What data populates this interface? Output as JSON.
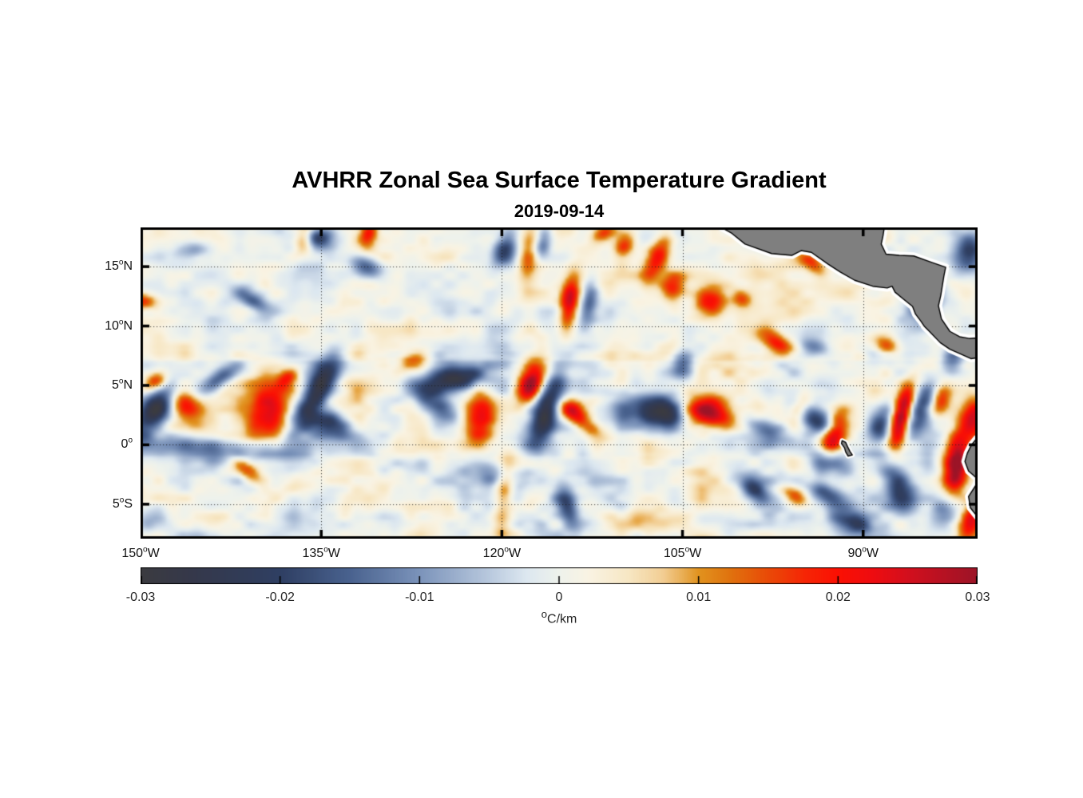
{
  "figure": {
    "title": "AVHRR Zonal Sea Surface Temperature Gradient",
    "subtitle": "2019-09-14"
  },
  "chart_data": {
    "type": "heatmap",
    "title": "AVHRR Zonal Sea Surface Temperature Gradient",
    "date": "2019-09-14",
    "units": "°C/km",
    "lon_range": [
      -150,
      -80.5
    ],
    "lat_range": [
      -7.9,
      18.3
    ],
    "x_ticks": [
      {
        "value": -150,
        "label": "150°W"
      },
      {
        "value": -135,
        "label": "135°W"
      },
      {
        "value": -120,
        "label": "120°W"
      },
      {
        "value": -105,
        "label": "105°W"
      },
      {
        "value": -90,
        "label": "90°W"
      }
    ],
    "y_ticks": [
      {
        "value": 15,
        "label": "15°N"
      },
      {
        "value": 10,
        "label": "10°N"
      },
      {
        "value": 5,
        "label": "5°N"
      },
      {
        "value": 0,
        "label": "0°"
      },
      {
        "value": -5,
        "label": "5°S"
      }
    ],
    "grid": {
      "style": "dotted",
      "color": "#1a1a1a",
      "x_lines": [
        -135,
        -120,
        -105,
        -90
      ],
      "y_lines": [
        15,
        10,
        5,
        0,
        -5
      ]
    },
    "colorbar": {
      "min": -0.03,
      "max": 0.03,
      "unit_label": "°C/km",
      "ticks": [
        {
          "value": -0.03,
          "label": "-0.03"
        },
        {
          "value": -0.02,
          "label": "-0.02"
        },
        {
          "value": -0.01,
          "label": "-0.01"
        },
        {
          "value": 0,
          "label": "0"
        },
        {
          "value": 0.01,
          "label": "0.01"
        },
        {
          "value": 0.02,
          "label": "0.02"
        },
        {
          "value": 0.03,
          "label": "0.03"
        }
      ],
      "stops": [
        [
          0.0,
          "#3b3b40"
        ],
        [
          0.06,
          "#35384a"
        ],
        [
          0.125,
          "#313c58"
        ],
        [
          0.167,
          "#2f3f63"
        ],
        [
          0.25,
          "#49628f"
        ],
        [
          0.333,
          "#7b93ba"
        ],
        [
          0.417,
          "#b9c9de"
        ],
        [
          0.46,
          "#dce7f0"
        ],
        [
          0.5,
          "#eef2ec"
        ],
        [
          0.535,
          "#f9f3e3"
        ],
        [
          0.583,
          "#f7e7c4"
        ],
        [
          0.625,
          "#f2cd92"
        ],
        [
          0.667,
          "#e1931f"
        ],
        [
          0.705,
          "#e0720e"
        ],
        [
          0.75,
          "#e94a07"
        ],
        [
          0.795,
          "#f62505"
        ],
        [
          0.833,
          "#fb1003"
        ],
        [
          0.875,
          "#ee0c10"
        ],
        [
          0.917,
          "#d30f1d"
        ],
        [
          1.0,
          "#9c1427"
        ]
      ]
    },
    "land": {
      "fill": "#7f7f7f",
      "outline": "#000000",
      "halo": "#ffffff",
      "polygons": {
        "central_america": [
          [
            -102.3,
            18.6
          ],
          [
            -100.9,
            17.8
          ],
          [
            -99.8,
            16.9
          ],
          [
            -97.6,
            16.1
          ],
          [
            -95.9,
            15.95
          ],
          [
            -95.15,
            16.35
          ],
          [
            -94.3,
            16.2
          ],
          [
            -92.9,
            15.2
          ],
          [
            -91.9,
            14.55
          ],
          [
            -90.7,
            13.85
          ],
          [
            -89.2,
            13.35
          ],
          [
            -88.0,
            13.2
          ],
          [
            -87.6,
            13.35
          ],
          [
            -87.35,
            12.85
          ],
          [
            -86.7,
            12.3
          ],
          [
            -85.9,
            11.65
          ],
          [
            -85.65,
            11.0
          ],
          [
            -85.2,
            10.4
          ],
          [
            -84.9,
            9.95
          ],
          [
            -84.55,
            9.6
          ],
          [
            -83.6,
            8.6
          ],
          [
            -82.8,
            8.05
          ],
          [
            -81.9,
            7.65
          ],
          [
            -81.05,
            7.25
          ],
          [
            -80.4,
            7.35
          ],
          [
            -79.9,
            7.6
          ],
          [
            -79.9,
            9.2
          ],
          [
            -80.4,
            9.0
          ],
          [
            -81.2,
            8.95
          ],
          [
            -82.0,
            9.1
          ],
          [
            -82.8,
            9.55
          ],
          [
            -83.5,
            10.6
          ],
          [
            -83.75,
            11.7
          ],
          [
            -83.55,
            12.6
          ],
          [
            -83.3,
            14.2
          ],
          [
            -83.15,
            14.95
          ],
          [
            -84.3,
            15.35
          ],
          [
            -85.8,
            15.9
          ],
          [
            -87.0,
            15.95
          ],
          [
            -88.1,
            16.05
          ],
          [
            -88.5,
            16.9
          ],
          [
            -88.35,
            17.6
          ],
          [
            -88.2,
            18.6
          ]
        ],
        "south_america": [
          [
            -79.3,
            1.3
          ],
          [
            -80.6,
            0.5
          ],
          [
            -81.0,
            0.0
          ],
          [
            -81.35,
            -0.7
          ],
          [
            -81.55,
            -1.4
          ],
          [
            -81.25,
            -2.2
          ],
          [
            -80.75,
            -2.65
          ],
          [
            -80.45,
            -2.9
          ],
          [
            -80.7,
            -3.5
          ],
          [
            -81.25,
            -4.35
          ],
          [
            -81.1,
            -5.3
          ],
          [
            -80.55,
            -6.0
          ],
          [
            -79.9,
            -6.9
          ],
          [
            -79.45,
            -7.9
          ],
          [
            -79.2,
            -8.6
          ],
          [
            -79.0,
            -8.6
          ],
          [
            -79.0,
            1.3
          ]
        ],
        "galapagos": [
          [
            -91.75,
            0.35
          ],
          [
            -91.45,
            0.2
          ],
          [
            -91.3,
            -0.15
          ],
          [
            -91.1,
            -0.55
          ],
          [
            -90.9,
            -0.85
          ],
          [
            -91.25,
            -0.95
          ],
          [
            -91.45,
            -0.6
          ],
          [
            -91.55,
            -0.25
          ],
          [
            -91.8,
            0.1
          ]
        ]
      }
    },
    "field": {
      "background_noise": {
        "seed": 11,
        "amplitude": 0.011,
        "octaves": [
          [
            5.5,
            3.5,
            0.45
          ],
          [
            2.4,
            1.6,
            0.6
          ],
          [
            1.1,
            0.75,
            0.35
          ]
        ],
        "north_damping": 0.8
      },
      "features_lon_lat_amp_sx_sy_rotdeg": [
        [
          -148.8,
          2.8,
          -0.026,
          1.7,
          0.8,
          55
        ],
        [
          -143.6,
          5.4,
          -0.018,
          1.4,
          0.55,
          35
        ],
        [
          -142.7,
          -0.6,
          -0.014,
          4.0,
          0.7,
          -5
        ],
        [
          -135.2,
          4.7,
          -0.028,
          2.4,
          0.75,
          62
        ],
        [
          -134.3,
          1.8,
          -0.02,
          0.8,
          1.5,
          75
        ],
        [
          -135.2,
          17.4,
          -0.022,
          0.55,
          1.0,
          85
        ],
        [
          -131.3,
          15.0,
          -0.018,
          0.6,
          1.0,
          70
        ],
        [
          -140.7,
          12.2,
          -0.014,
          1.1,
          0.5,
          -35
        ],
        [
          -124.2,
          5.4,
          -0.026,
          2.2,
          0.7,
          12
        ],
        [
          -125.2,
          3.3,
          -0.019,
          0.7,
          1.3,
          60
        ],
        [
          -116.2,
          3.0,
          -0.028,
          2.4,
          0.75,
          72
        ],
        [
          -107.3,
          2.9,
          -0.022,
          2.0,
          1.1,
          10
        ],
        [
          -106.2,
          2.3,
          -0.014,
          0.9,
          0.9,
          0
        ],
        [
          -104.9,
          7.0,
          -0.016,
          1.0,
          0.65,
          80
        ],
        [
          -119.7,
          16.5,
          -0.02,
          1.3,
          0.7,
          75
        ],
        [
          -116.6,
          17.0,
          -0.016,
          0.9,
          0.5,
          75
        ],
        [
          -112.8,
          12.0,
          -0.016,
          1.5,
          0.5,
          80
        ],
        [
          -94.1,
          2.3,
          -0.02,
          1.6,
          0.8,
          -25
        ],
        [
          -92.6,
          -1.4,
          -0.016,
          1.4,
          0.8,
          -20
        ],
        [
          -98.2,
          1.4,
          -0.017,
          1.6,
          0.6,
          -25
        ],
        [
          -99.1,
          -3.8,
          -0.018,
          1.5,
          0.6,
          -42
        ],
        [
          -93.1,
          -4.1,
          -0.016,
          1.3,
          0.6,
          -30
        ],
        [
          -90.8,
          -6.6,
          -0.018,
          0.6,
          1.3,
          75
        ],
        [
          -87.1,
          -3.6,
          -0.02,
          1.8,
          0.8,
          -70
        ],
        [
          -114.6,
          -5.2,
          -0.016,
          1.6,
          0.6,
          -75
        ],
        [
          -85.2,
          3.0,
          -0.02,
          1.7,
          0.7,
          65
        ],
        [
          -88.4,
          1.7,
          -0.016,
          1.4,
          0.6,
          65
        ],
        [
          -84.8,
          12.3,
          -0.02,
          1.5,
          0.9,
          80
        ],
        [
          -81.1,
          16.1,
          -0.02,
          1.3,
          0.9,
          70
        ],
        [
          -82.6,
          7.2,
          -0.016,
          1.0,
          0.7,
          60
        ],
        [
          -94.0,
          8.2,
          -0.014,
          0.9,
          0.55,
          -20
        ],
        [
          -82.9,
          -5.6,
          -0.02,
          1.5,
          0.9,
          70
        ],
        [
          -120.6,
          -2.3,
          -0.012,
          1.6,
          0.8,
          -20
        ],
        [
          -146.0,
          16.3,
          -0.012,
          1.2,
          0.7,
          10
        ],
        [
          -148.9,
          5.3,
          0.018,
          0.8,
          0.5,
          30
        ],
        [
          -146.4,
          3.6,
          0.02,
          1.3,
          0.9,
          -50
        ],
        [
          -139.4,
          3.0,
          0.022,
          2.4,
          1.2,
          85
        ],
        [
          -137.8,
          5.6,
          0.016,
          0.8,
          0.5,
          40
        ],
        [
          -136.4,
          17.5,
          0.018,
          0.9,
          0.55,
          80
        ],
        [
          -131.1,
          17.7,
          0.016,
          0.8,
          0.5,
          70
        ],
        [
          -121.8,
          2.3,
          0.02,
          2.2,
          0.9,
          85
        ],
        [
          -117.6,
          5.1,
          0.03,
          1.3,
          0.75,
          70
        ],
        [
          -114.2,
          2.9,
          0.022,
          1.0,
          0.65,
          -30
        ],
        [
          -112.9,
          1.5,
          0.014,
          1.2,
          0.5,
          -35
        ],
        [
          -114.4,
          12.0,
          0.024,
          1.7,
          0.55,
          82
        ],
        [
          -111.6,
          17.8,
          0.016,
          0.8,
          0.5,
          30
        ],
        [
          -109.8,
          16.8,
          0.016,
          0.8,
          0.6,
          60
        ],
        [
          -107.0,
          16.0,
          0.02,
          1.5,
          0.6,
          65
        ],
        [
          -105.8,
          13.2,
          0.02,
          0.8,
          0.7,
          45
        ],
        [
          -102.6,
          12.1,
          0.02,
          1.0,
          0.8,
          30
        ],
        [
          -117.8,
          15.8,
          0.013,
          1.6,
          0.6,
          85
        ],
        [
          -103.0,
          2.7,
          0.028,
          1.7,
          1.0,
          -10
        ],
        [
          -100.1,
          12.4,
          0.014,
          0.6,
          0.5,
          -35
        ],
        [
          -97.2,
          8.6,
          0.02,
          1.1,
          0.6,
          -30
        ],
        [
          -95.3,
          2.8,
          0.015,
          1.0,
          0.6,
          70
        ],
        [
          -92.4,
          0.9,
          0.028,
          1.4,
          0.65,
          72
        ],
        [
          -87.1,
          1.4,
          0.026,
          1.7,
          0.6,
          80
        ],
        [
          -86.3,
          4.0,
          0.02,
          1.3,
          0.55,
          75
        ],
        [
          -83.6,
          3.7,
          0.02,
          1.1,
          0.6,
          75
        ],
        [
          -82.3,
          -2.0,
          0.032,
          2.4,
          0.75,
          85
        ],
        [
          -80.9,
          2.2,
          0.024,
          1.3,
          0.7,
          80
        ],
        [
          -81.0,
          -6.3,
          0.022,
          1.1,
          0.6,
          70
        ],
        [
          -88.1,
          8.4,
          0.016,
          0.9,
          0.6,
          -20
        ],
        [
          -94.2,
          15.2,
          0.016,
          0.9,
          0.5,
          -35
        ],
        [
          -119.8,
          -4.0,
          0.013,
          2.2,
          0.55,
          85
        ],
        [
          -141.2,
          -2.1,
          0.012,
          1.3,
          0.5,
          -40
        ],
        [
          -95.6,
          -4.3,
          0.016,
          0.9,
          0.5,
          -30
        ],
        [
          -127.3,
          7.2,
          0.014,
          1.0,
          0.55,
          20
        ],
        [
          -149.8,
          12.1,
          0.016,
          0.5,
          0.8,
          80
        ]
      ]
    }
  }
}
